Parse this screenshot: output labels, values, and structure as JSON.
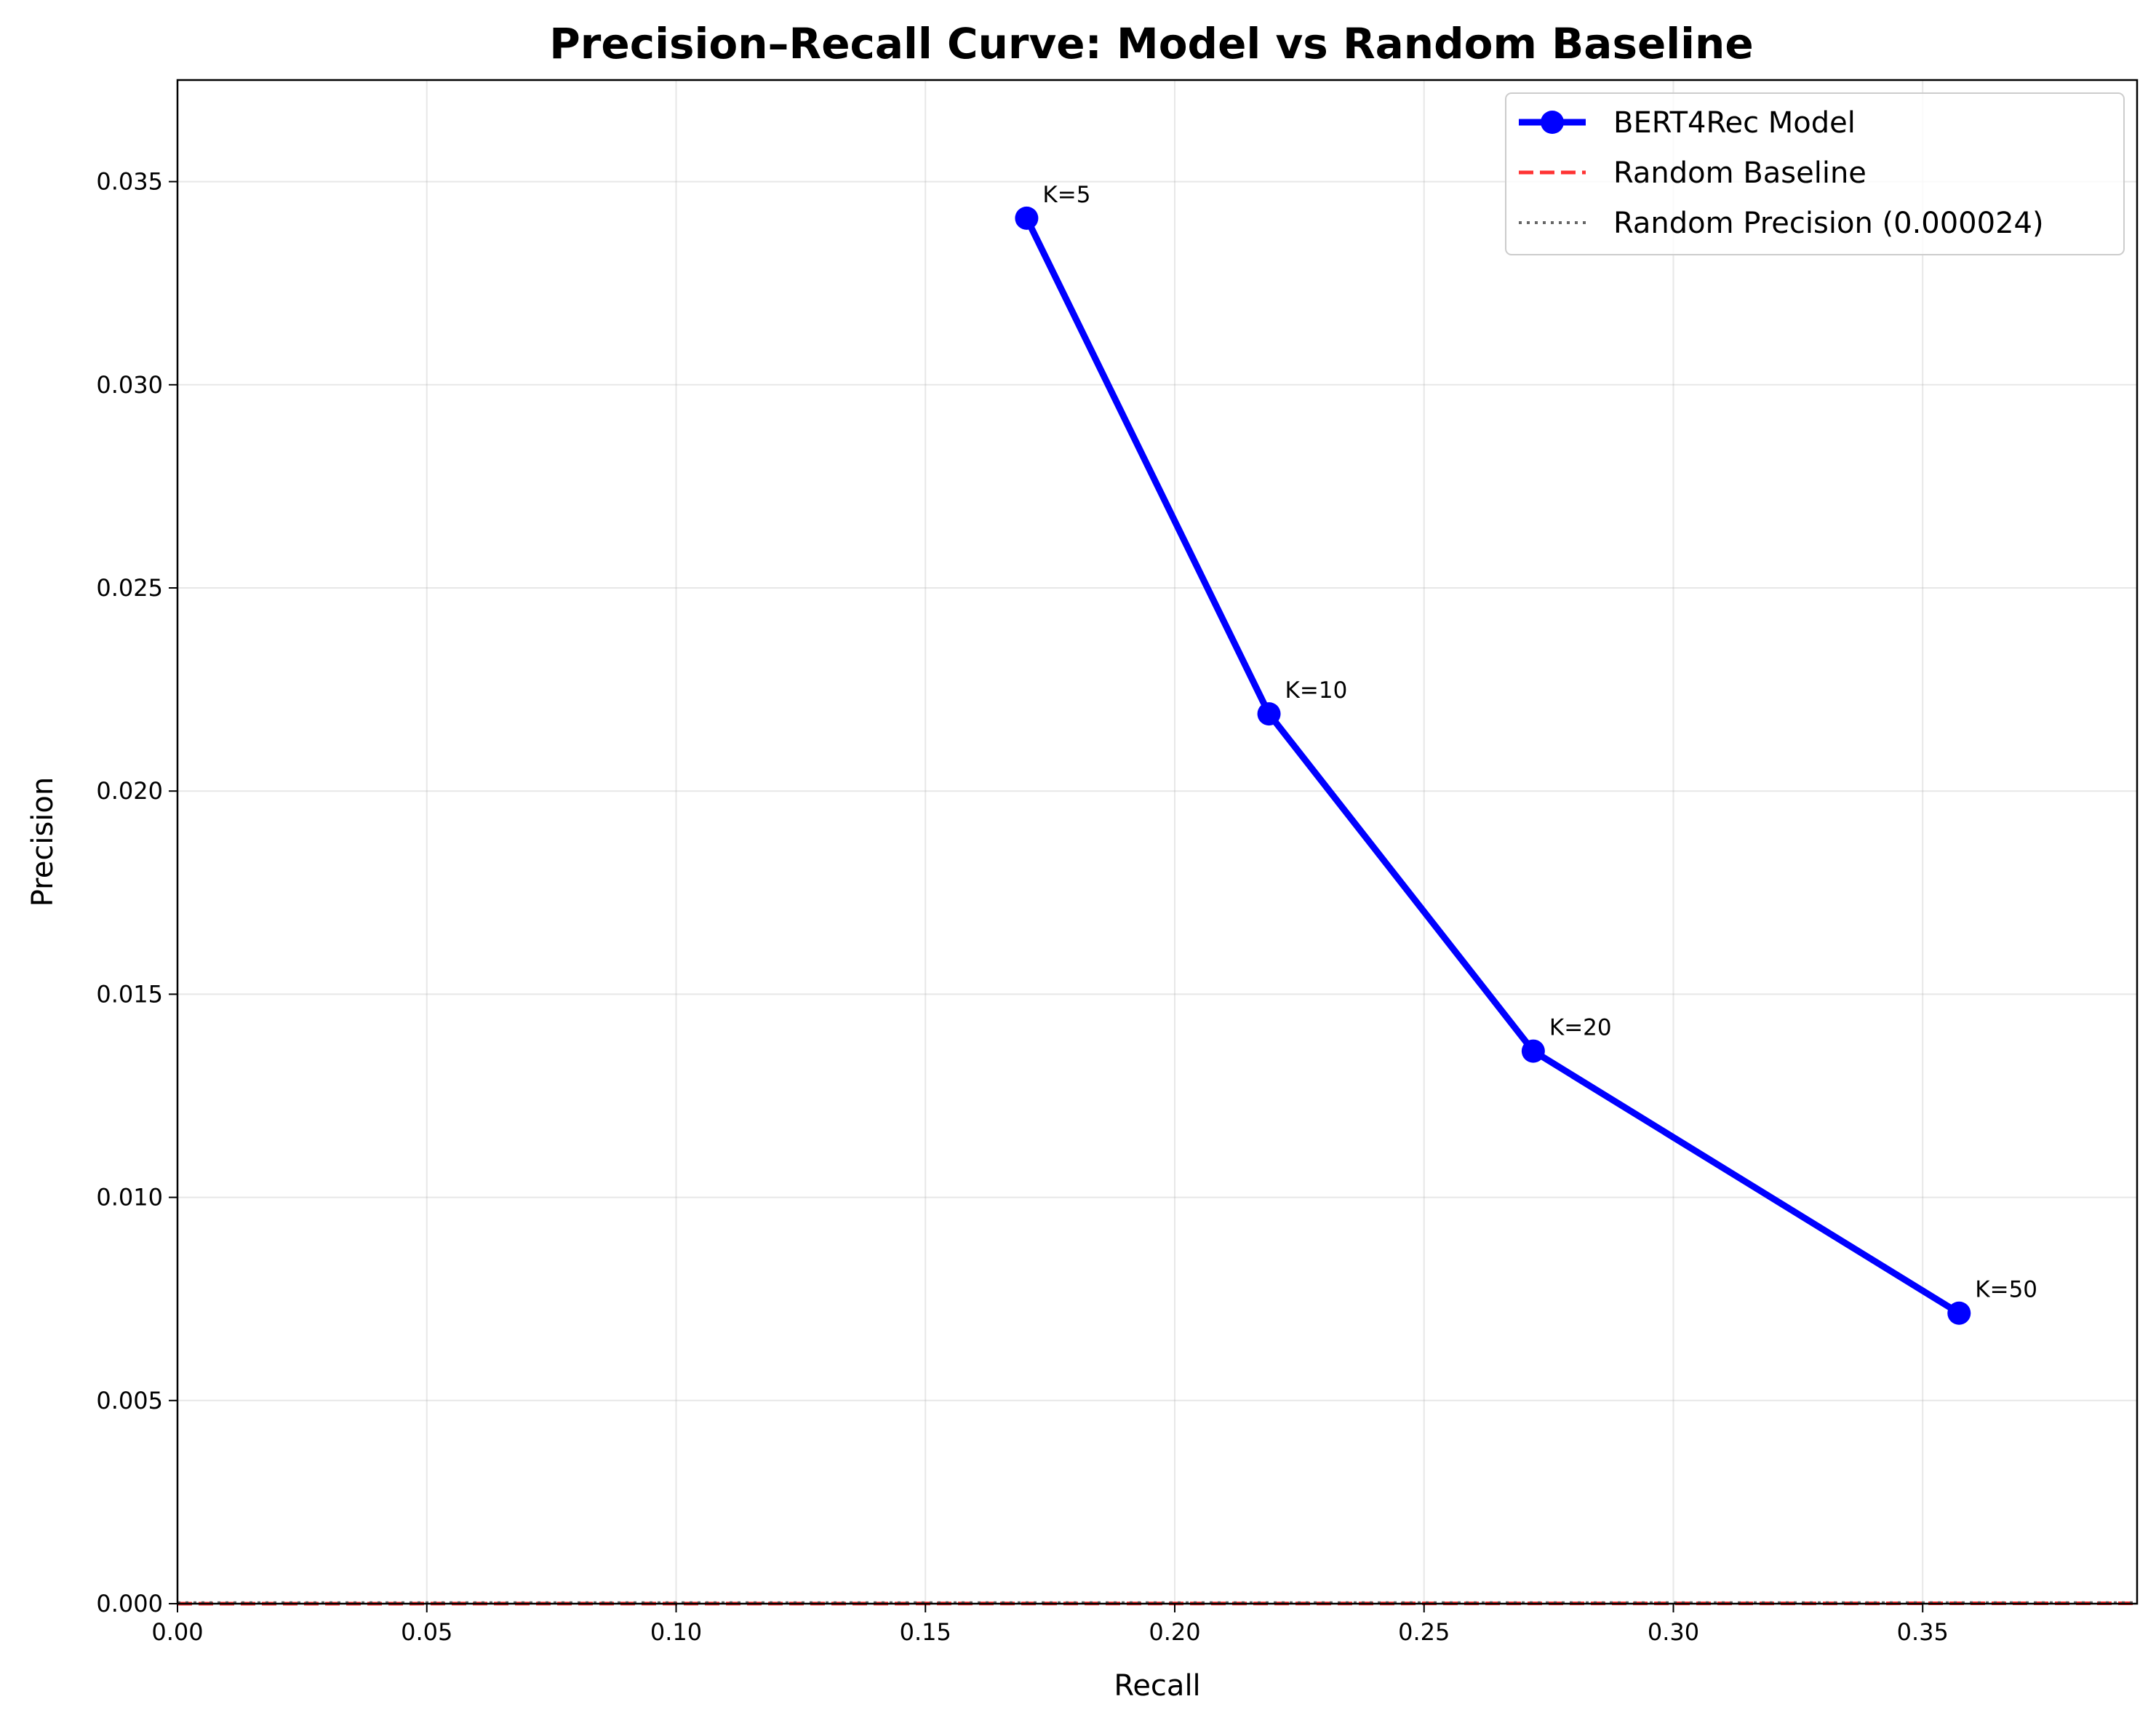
{
  "chart_data": {
    "type": "line",
    "title": "Precision–Recall Curve: Model vs Random Baseline",
    "xlabel": "Recall",
    "ylabel": "Precision",
    "xlim": [
      0,
      0.393
    ],
    "ylim": [
      0,
      0.0375
    ],
    "xticks": [
      "0.00",
      "0.05",
      "0.10",
      "0.15",
      "0.20",
      "0.25",
      "0.30",
      "0.35"
    ],
    "yticks": [
      "0.000",
      "0.005",
      "0.010",
      "0.015",
      "0.020",
      "0.025",
      "0.030",
      "0.035"
    ],
    "grid": true,
    "legend_position": "top-right",
    "series": [
      {
        "name": "BERT4Rec Model",
        "color": "#0000ff",
        "style": "solid-with-markers",
        "x": [
          0.1703,
          0.2189,
          0.2719,
          0.3573
        ],
        "y": [
          0.0341,
          0.0219,
          0.0136,
          0.00715
        ],
        "labels": [
          "K=5",
          "K=10",
          "K=20",
          "K=50"
        ]
      },
      {
        "name": "Random Baseline",
        "color": "#ff0000",
        "style": "dashed",
        "x": [
          0,
          0.393
        ],
        "y": [
          1e-07,
          9.4e-06
        ]
      },
      {
        "name": "Random Precision (0.000024)",
        "color": "#555555",
        "style": "dotted",
        "x": [
          0,
          0.393
        ],
        "y": [
          2.4e-05,
          2.4e-05
        ]
      }
    ]
  }
}
